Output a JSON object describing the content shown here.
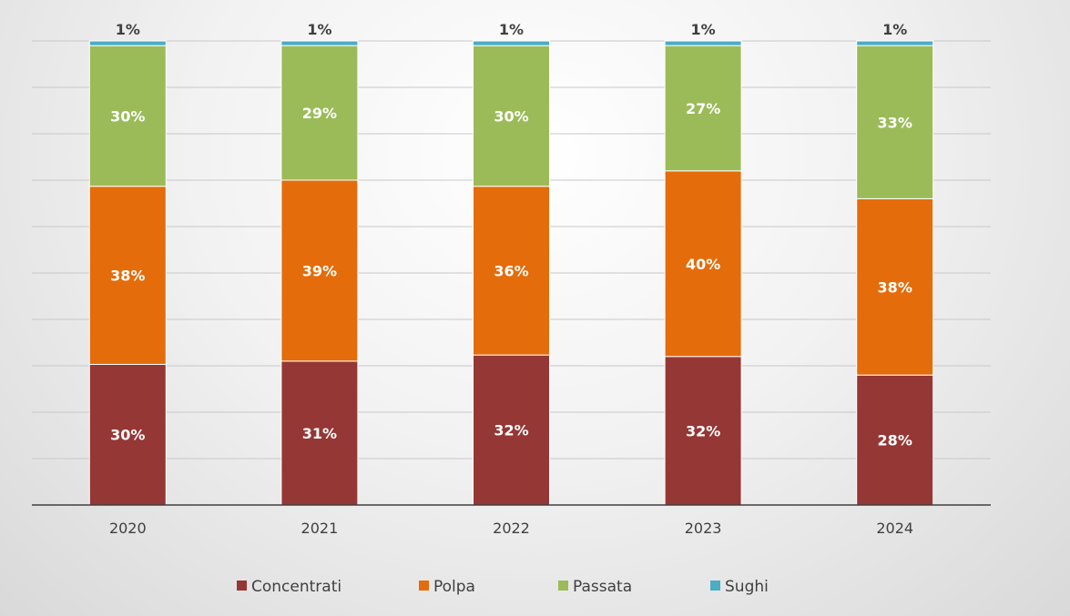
{
  "chart_data": {
    "type": "bar",
    "stacked": true,
    "title": "",
    "xlabel": "",
    "ylabel": "",
    "ylim": [
      0,
      100
    ],
    "categories": [
      "2020",
      "2021",
      "2022",
      "2023",
      "2024"
    ],
    "series": [
      {
        "name": "Concentrati",
        "color": "#953735",
        "values": [
          30,
          31,
          32,
          32,
          28
        ],
        "labels": [
          "30%",
          "31%",
          "32%",
          "32%",
          "28%"
        ]
      },
      {
        "name": "Polpa",
        "color": "#E46C0A",
        "values": [
          38,
          39,
          36,
          40,
          38
        ],
        "labels": [
          "38%",
          "39%",
          "36%",
          "40%",
          "38%"
        ]
      },
      {
        "name": "Passata",
        "color": "#9BBB59",
        "values": [
          30,
          29,
          30,
          27,
          33
        ],
        "labels": [
          "30%",
          "29%",
          "30%",
          "27%",
          "33%"
        ]
      },
      {
        "name": "Sughi",
        "color": "#4BACC6",
        "values": [
          1,
          1,
          1,
          1,
          1
        ],
        "labels": [
          "1%",
          "1%",
          "1%",
          "1%",
          "1%"
        ]
      }
    ],
    "grid": true,
    "legend_position": "bottom"
  }
}
